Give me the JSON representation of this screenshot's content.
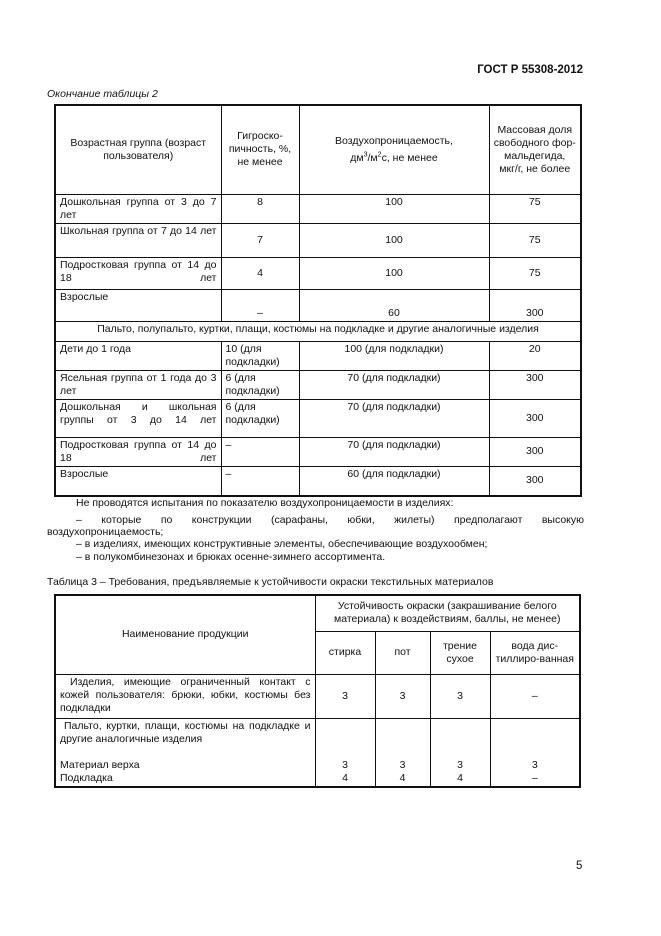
{
  "header": {
    "doc_code": "ГОСТ Р 55308-2012"
  },
  "table2": {
    "caption": "Окончание таблицы 2",
    "headers": [
      "Возрастная группа (возраст пользователя)",
      "Гигроско-пичность, %, не менее",
      "Воздухопроницаемость, дм³/м²с, не менее",
      "Массовая доля свободного фор-мальдегида, мкг/г, не более"
    ],
    "rows": [
      [
        "Дошкольная группа от 3 до 7 лет",
        "8",
        "100",
        "75"
      ],
      [
        "Школьная группа от 7 до 14 лет",
        "7",
        "100",
        "75"
      ],
      [
        "Подростковая группа от 14 до 18 лет",
        "4",
        "100",
        "75"
      ],
      [
        "Взрослые",
        "–",
        "60",
        "300"
      ]
    ],
    "section": "Пальто, полупальто, куртки, плащи, костюмы на подкладке и другие аналогичные изделия",
    "rows2": [
      [
        "Дети до 1 года",
        "10 (для подкладки)",
        "100 (для подкладки)",
        "20"
      ],
      [
        "Ясельная группа от 1 года до 3 лет",
        "6 (для подкладки)",
        "70 (для подкладки)",
        "300"
      ],
      [
        "Дошкольная и школьная группы от 3 до 14 лет",
        "6 (для подкладки)",
        "70 (для подкладки)",
        "300"
      ],
      [
        "Подростковая группа от 14 до 18 лет",
        "–",
        "70 (для подкладки)",
        "300"
      ],
      [
        "Взрослые",
        "–",
        "60 (для подкладки)",
        "300"
      ]
    ]
  },
  "notes": {
    "intro": "Не проводятся испытания по показателю воздухопроницаемости в изделиях:",
    "items": [
      "– которые по конструкции (сарафаны, юбки, жилеты) предполагают высокую",
      "воздухопроницаемость;",
      "– в изделиях, имеющих конструктивные элементы, обеспечивающие воздухообмен;",
      "– в полукомбинезонах и брюках осенне-зимнего ассортимента."
    ]
  },
  "table3": {
    "caption": "Таблица 3 – Требования, предъявляемые к устойчивости окраски текстильных материалов",
    "h_name": "Наименование продукции",
    "h_group": "Устойчивость окраски (закрашивание белого материала) к воздействиям, баллы, не менее)",
    "h_cols": [
      "стирка",
      "пот",
      "трение сухое",
      "вода дис-тиллиро-ванная"
    ],
    "row1": {
      "name": "Изделия, имеющие ограниченный контакт с кожей пользователя: брюки, юбки, костюмы без подкладки",
      "values": [
        "3",
        "3",
        "3",
        "–"
      ]
    },
    "row2": {
      "name": "Пальто, куртки, плащи, костюмы на подкладке и другие аналогичные изделия",
      "sub": [
        {
          "name": "Материал верха",
          "values": [
            "3",
            "3",
            "3",
            "3"
          ]
        },
        {
          "name": "Подкладка",
          "values": [
            "4",
            "4",
            "4",
            "–"
          ]
        }
      ]
    }
  },
  "footer": {
    "page_number": "5"
  }
}
